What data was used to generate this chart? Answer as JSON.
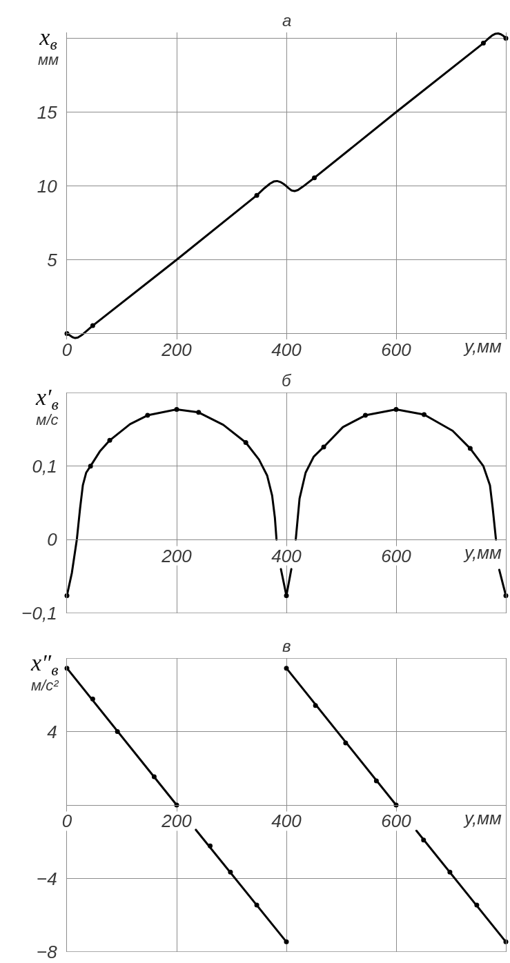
{
  "chart_data": [
    {
      "type": "line",
      "title": "а",
      "xlabel": "y,мм",
      "ylabel": "x$_{в}$\nмм",
      "xlim": [
        0,
        800
      ],
      "xticks": [
        0,
        200,
        400,
        600
      ],
      "ylim": [
        -0.4,
        20.4
      ],
      "yticks": [
        {
          "value": 0,
          "label": null
        },
        5,
        10,
        15,
        {
          "value": 20,
          "label": null
        }
      ],
      "grid": true,
      "series": [
        {
          "color": "#000000",
          "x": [
            0,
            5,
            10,
            15,
            20,
            28,
            47,
            200,
            346,
            360,
            370,
            377,
            383,
            390,
            397,
            403,
            409,
            415,
            421,
            430,
            451,
            600,
            759,
            768,
            775,
            781,
            786,
            791,
            796,
            800
          ],
          "values": [
            0,
            -0.12,
            -0.25,
            -0.31,
            -0.27,
            -0.08,
            0.53,
            5,
            9.36,
            9.85,
            10.15,
            10.3,
            10.33,
            10.25,
            10.08,
            9.88,
            9.7,
            9.65,
            9.72,
            9.95,
            10.55,
            15,
            19.67,
            19.98,
            20.2,
            20.31,
            20.33,
            20.27,
            20.15,
            20
          ]
        },
        {
          "type": "scatter",
          "marker": "circle",
          "color": "#000000",
          "x": [
            0,
            47,
            346,
            451,
            759,
            800
          ],
          "values": [
            0,
            0.53,
            9.36,
            10.55,
            19.67,
            20
          ]
        }
      ]
    },
    {
      "type": "line",
      "title": "б",
      "xlabel": "y,мм",
      "ylabel": "x′$_{в}$\nм/с",
      "xlim": [
        0,
        800
      ],
      "xticks": [
        200,
        400,
        600
      ],
      "ylim": [
        -0.1,
        0.2
      ],
      "yticks": [
        {
          "value": -0.1,
          "label": "−0,1"
        },
        0,
        {
          "value": 0.1,
          "label": "0,1"
        },
        {
          "value": 0.2,
          "label": null
        }
      ],
      "grid": true,
      "series": [
        {
          "color": "#000000",
          "x": [
            0,
            9,
            18,
            24,
            29,
            35,
            43,
            60,
            78,
            115,
            147,
            200,
            240,
            285,
            326,
            350,
            365,
            374,
            379,
            382
          ],
          "values": [
            -0.076,
            -0.045,
            0,
            0.043,
            0.074,
            0.091,
            0.1,
            0.12,
            0.135,
            0.157,
            0.169,
            0.177,
            0.173,
            0.156,
            0.132,
            0.109,
            0.087,
            0.06,
            0.03,
            0
          ]
        },
        {
          "color": "#000000",
          "x": [
            390,
            400,
            409
          ],
          "values": [
            -0.04,
            -0.076,
            -0.04
          ]
        },
        {
          "color": "#000000",
          "x": [
            417,
            424,
            435,
            450,
            468,
            503,
            544,
            600,
            651,
            703,
            735,
            759,
            771,
            776,
            782
          ],
          "values": [
            0,
            0.056,
            0.091,
            0.113,
            0.126,
            0.153,
            0.169,
            0.177,
            0.17,
            0.148,
            0.124,
            0.1,
            0.074,
            0.043,
            0
          ]
        },
        {
          "color": "#000000",
          "x": [
            788,
            800
          ],
          "values": [
            -0.041,
            -0.076
          ]
        },
        {
          "type": "scatter",
          "marker": "circle",
          "color": "#000000",
          "x": [
            0,
            43,
            78,
            147,
            200,
            240,
            326,
            400,
            468,
            544,
            600,
            651,
            735,
            800
          ],
          "values": [
            -0.076,
            0.1,
            0.135,
            0.169,
            0.177,
            0.173,
            0.132,
            -0.076,
            0.126,
            0.169,
            0.177,
            0.17,
            0.124,
            -0.076
          ]
        }
      ]
    },
    {
      "type": "line",
      "title": "в",
      "xlabel": "y,мм",
      "ylabel": "x″$_{в}$\nм/с²",
      "xlim": [
        0,
        800
      ],
      "xticks": [
        0,
        200,
        400,
        600
      ],
      "ylim": [
        -8,
        8
      ],
      "yticks": [
        {
          "value": -8,
          "label": "−8"
        },
        {
          "value": -4,
          "label": "−4"
        },
        {
          "value": 0,
          "label": null
        },
        4,
        {
          "value": 8,
          "label": null
        }
      ],
      "grid": true,
      "series": [
        {
          "color": "#000000",
          "x": [
            0,
            200
          ],
          "values": [
            7.45,
            0
          ]
        },
        {
          "color": "#000000",
          "x": [
            235,
            400
          ],
          "values": [
            -1.35,
            -7.45
          ]
        },
        {
          "color": "#000000",
          "x": [
            400,
            600
          ],
          "values": [
            7.45,
            0
          ]
        },
        {
          "color": "#000000",
          "x": [
            637,
            800
          ],
          "values": [
            -1.4,
            -7.45
          ]
        },
        {
          "type": "scatter",
          "marker": "circle",
          "color": "#000000",
          "x": [
            0,
            47,
            92,
            159,
            200,
            261,
            298,
            346,
            400,
            400,
            453,
            508,
            564,
            600,
            650,
            698,
            747,
            800
          ],
          "values": [
            7.45,
            5.77,
            4.0,
            1.54,
            0,
            -2.23,
            -3.65,
            -5.45,
            -7.45,
            7.45,
            5.42,
            3.38,
            1.31,
            0,
            -1.91,
            -3.65,
            -5.45,
            -7.45
          ]
        }
      ]
    }
  ]
}
